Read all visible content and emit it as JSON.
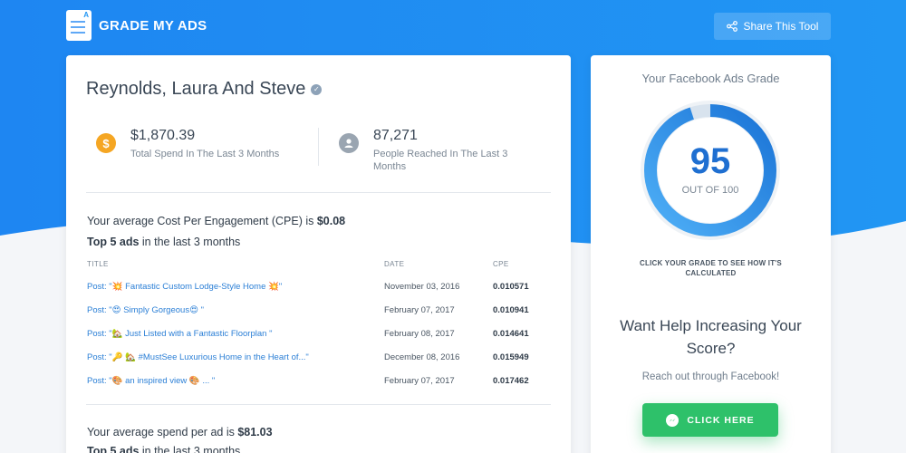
{
  "header": {
    "logo_text": "GRADE MY ADS",
    "share_label": "Share This Tool"
  },
  "account": {
    "name": "Reynolds, Laura And Steve"
  },
  "stats": {
    "spend_value": "$1,870.39",
    "spend_label": "Total Spend In The Last 3 Months",
    "reach_value": "87,271",
    "reach_label": "People Reached In The Last 3 Months"
  },
  "cpe_section": {
    "summary_prefix": "Your average Cost Per Engagement (CPE) is ",
    "summary_value": "$0.08",
    "top_prefix": "Top 5 ads",
    "top_suffix": " in the last 3 months",
    "columns": [
      "TITLE",
      "DATE",
      "CPE"
    ],
    "rows": [
      {
        "title": "Post: \"💥 Fantastic Custom Lodge-Style Home 💥\"",
        "date": "November 03, 2016",
        "cpe": "0.010571"
      },
      {
        "title": "Post: \"😍 Simply Gorgeous😍 \"",
        "date": "February 07, 2017",
        "cpe": "0.010941"
      },
      {
        "title": "Post: \"🏡 Just Listed with a Fantastic Floorplan \"",
        "date": "February 08, 2017",
        "cpe": "0.014641"
      },
      {
        "title": "Post: \"🔑 🏡 #MustSee Luxurious Home in the Heart of...\"",
        "date": "December 08, 2016",
        "cpe": "0.015949"
      },
      {
        "title": "Post: \"🎨 an inspired view 🎨 ... \"",
        "date": "February 07, 2017",
        "cpe": "0.017462"
      }
    ]
  },
  "spend_section": {
    "summary_prefix": "Your average spend per ad is ",
    "summary_value": "$81.03",
    "top_prefix": "Top 5 ads",
    "top_suffix": " in the last 3 months"
  },
  "grade": {
    "title": "Your Facebook Ads Grade",
    "value": "95",
    "out_of": "OUT OF 100",
    "fraction": 0.95,
    "click_text": "CLICK YOUR GRADE TO SEE HOW IT'S CALCULATED"
  },
  "help": {
    "title": "Want Help Increasing Your Score?",
    "reach_out": "Reach out through Facebook!",
    "button_label": "CLICK HERE"
  },
  "colors": {
    "brand_blue": "#2196f3",
    "cta_green": "#2ec16a",
    "coin_orange": "#f5a623",
    "link_blue": "#2b7fd6"
  }
}
